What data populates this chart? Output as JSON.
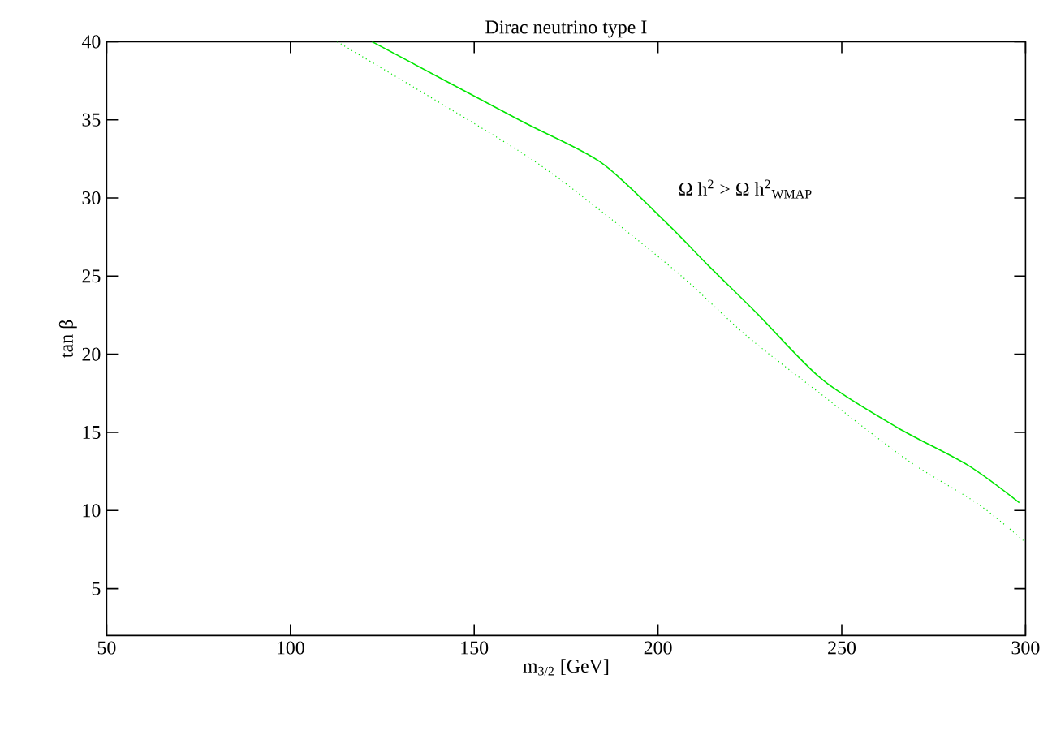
{
  "chart_data": {
    "type": "line",
    "title": "Dirac neutrino type I",
    "xlabel": "m$_{3/2}$ [GeV]",
    "ylabel": "tan β",
    "annotations": [
      "Ω h$^{2}$ > Ω h$^{2}$$_{WMAP}$"
    ],
    "xlim": [
      50,
      300
    ],
    "ylim": [
      2,
      40
    ],
    "xticks": [
      50,
      100,
      150,
      200,
      250,
      300
    ],
    "yticks": [
      5,
      10,
      15,
      20,
      25,
      30,
      35,
      40
    ],
    "grid": false,
    "marker": "none",
    "series": [
      {
        "color": "#00e600",
        "line_style": "solid",
        "x": [
          122.2,
          162.2,
          184.3,
          201.9,
          213.6,
          227.0,
          244.6,
          265.2,
          284.3,
          298.3
        ],
        "values": [
          40,
          35.0,
          32.3,
          28.5,
          25.7,
          22.6,
          18.4,
          15.3,
          12.9,
          10.5
        ]
      },
      {
        "color": "#00e600",
        "line_style": "dotted",
        "x": [
          112.7,
          162.2,
          184.3,
          206.4,
          224.0,
          244.6,
          268.0,
          287.2,
          299.8
        ],
        "values": [
          40,
          33.0,
          29.2,
          25.0,
          21.2,
          17.4,
          13.2,
          10.4,
          8.0
        ]
      }
    ]
  }
}
